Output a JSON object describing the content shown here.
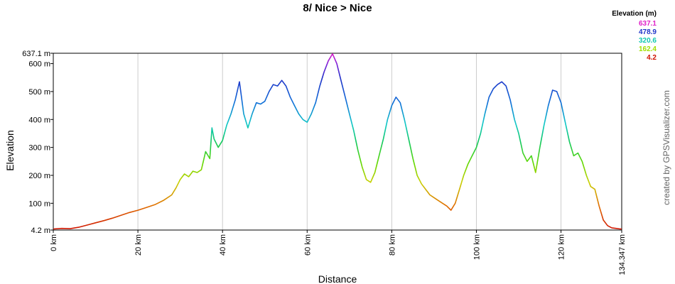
{
  "chart_data": {
    "type": "line",
    "title": "8/ Nice > Nice",
    "xlabel": "Distance",
    "ylabel": "Elevation",
    "x_unit": "km",
    "y_unit": "m",
    "xlim": [
      0,
      134.347
    ],
    "ylim": [
      4.2,
      637.1
    ],
    "x_ticks": [
      {
        "value": 0,
        "label": "0 km"
      },
      {
        "value": 20,
        "label": "20 km"
      },
      {
        "value": 40,
        "label": "40 km"
      },
      {
        "value": 60,
        "label": "60 km"
      },
      {
        "value": 80,
        "label": "80 km"
      },
      {
        "value": 100,
        "label": "100 km"
      },
      {
        "value": 120,
        "label": "120 km"
      },
      {
        "value": 134.347,
        "label": "134.347 km"
      }
    ],
    "y_ticks": [
      {
        "value": 4.2,
        "label": "4.2 m"
      },
      {
        "value": 100,
        "label": "100 m"
      },
      {
        "value": 200,
        "label": "200 m"
      },
      {
        "value": 300,
        "label": "300 m"
      },
      {
        "value": 400,
        "label": "400 m"
      },
      {
        "value": 500,
        "label": "500 m"
      },
      {
        "value": 600,
        "label": "600 m"
      },
      {
        "value": 637.1,
        "label": "637.1 m"
      }
    ],
    "grid": {
      "vertical": true,
      "horizontal": false
    },
    "legend": {
      "title": "Elevation (m)",
      "placement": "top-right",
      "entries": [
        {
          "label": "637.1",
          "color": "#e020c8"
        },
        {
          "label": "478.9",
          "color": "#1f35c8"
        },
        {
          "label": "320.6",
          "color": "#10c8b0"
        },
        {
          "label": "162.4",
          "color": "#a0e000"
        },
        {
          "label": "4.2",
          "color": "#d01000"
        }
      ]
    },
    "series": [
      {
        "x": [
          0,
          2,
          4,
          6,
          8,
          10,
          12,
          14,
          16,
          18,
          20,
          22,
          24,
          26,
          28,
          29,
          30,
          31,
          32,
          33,
          34,
          35,
          36,
          37,
          37.5,
          38,
          39,
          40,
          41,
          42,
          43,
          44,
          45,
          46,
          47,
          48,
          49,
          50,
          51,
          52,
          53,
          54,
          55,
          56,
          57,
          58,
          59,
          60,
          61,
          62,
          63,
          64,
          65,
          66,
          67,
          68,
          69,
          70,
          71,
          72,
          73,
          74,
          75,
          76,
          77,
          78,
          79,
          80,
          81,
          82,
          83,
          84,
          85,
          86,
          87,
          88,
          89,
          90,
          91,
          92,
          93,
          94,
          95,
          96,
          97,
          98,
          99,
          100,
          101,
          102,
          103,
          104,
          105,
          106,
          107,
          108,
          109,
          110,
          111,
          112,
          113,
          114,
          115,
          116,
          117,
          118,
          119,
          120,
          121,
          122,
          123,
          124,
          125,
          126,
          127,
          128,
          129,
          130,
          131,
          132,
          133,
          134,
          134.347
        ],
        "y": [
          8,
          10,
          9,
          14,
          22,
          30,
          38,
          47,
          57,
          67,
          75,
          85,
          95,
          110,
          130,
          155,
          185,
          205,
          195,
          215,
          210,
          220,
          285,
          260,
          370,
          330,
          300,
          325,
          380,
          420,
          470,
          535,
          420,
          370,
          420,
          460,
          455,
          465,
          500,
          525,
          520,
          540,
          520,
          480,
          450,
          420,
          400,
          390,
          420,
          460,
          520,
          570,
          610,
          635,
          600,
          540,
          480,
          420,
          360,
          290,
          230,
          185,
          175,
          210,
          270,
          330,
          400,
          450,
          480,
          460,
          400,
          330,
          260,
          200,
          170,
          150,
          130,
          120,
          110,
          100,
          90,
          75,
          100,
          150,
          200,
          240,
          270,
          300,
          350,
          420,
          480,
          510,
          525,
          535,
          520,
          470,
          400,
          350,
          280,
          250,
          270,
          210,
          300,
          380,
          450,
          505,
          500,
          460,
          390,
          320,
          270,
          280,
          250,
          200,
          160,
          150,
          90,
          40,
          20,
          12,
          10,
          8,
          8
        ]
      }
    ]
  },
  "credit": "created by GPSVisualizer.com"
}
